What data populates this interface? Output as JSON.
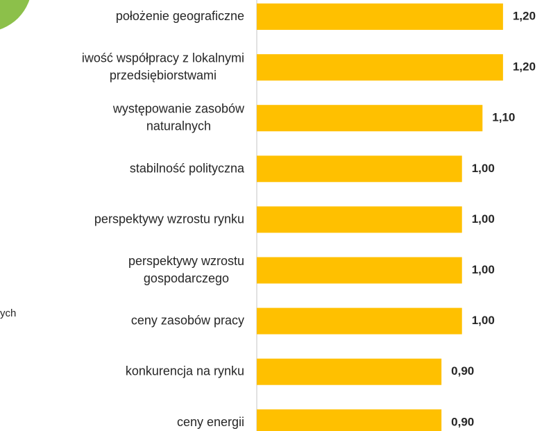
{
  "chart_data": {
    "type": "barh",
    "categories": [
      "położenie geograficzne",
      "iwość współpracy z lokalnymi\nprzedsiębiorstwami",
      "występowanie zasobów\nnaturalnych",
      "stabilność polityczna",
      "perspektywy wzrostu rynku",
      "perspektywy wzrostu\ngospodarczego",
      "ceny zasobów pracy",
      "konkurencja na rynku",
      "ceny energii"
    ],
    "values": [
      1.2,
      1.2,
      1.1,
      1.0,
      1.0,
      1.0,
      1.0,
      0.9,
      0.9
    ],
    "value_labels": [
      "1,20",
      "1,20",
      "1,10",
      "1,00",
      "1,00",
      "1,00",
      "1,00",
      "0,90",
      "0,90"
    ],
    "color": "#ffc000",
    "xlim": [
      0,
      1.4
    ],
    "annotations": [
      "ych"
    ]
  }
}
